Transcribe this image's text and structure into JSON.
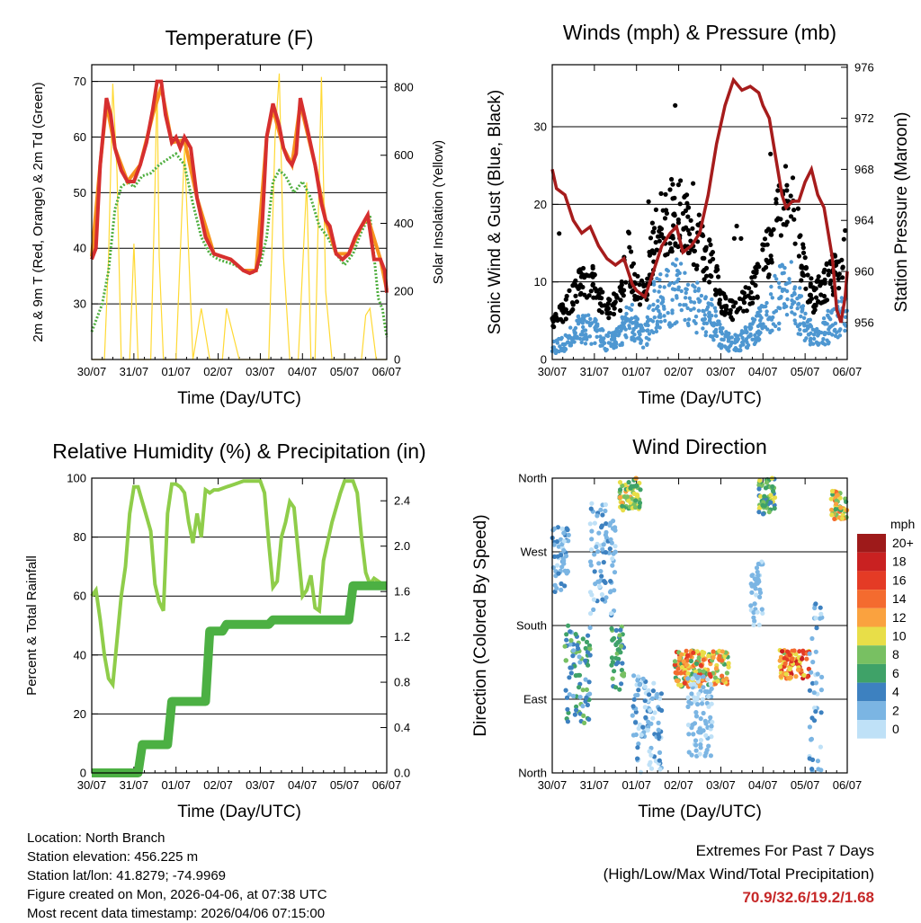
{
  "colors": {
    "temp_red": "#d62f2f",
    "temp_orange": "#f7931e",
    "dewpoint_green": "#4fae3f",
    "solar_yellow": "#ffd934",
    "gust_black": "#000000",
    "wind_blue": "#4e97d1",
    "pressure_maroon": "#a61c1c",
    "rh_lightgreen": "#8fcd4a",
    "precip_green": "#4cb043",
    "extremes_red": "#c62828"
  },
  "chart_data": [
    {
      "id": "temperature",
      "type": "line",
      "title": "Temperature (F)",
      "xlabel": "Time (Day/UTC)",
      "ylabel": "2m & 9m T (Red, Orange) & 2m Td (Green)",
      "ylabel_right": "Solar Insolation (Yellow)",
      "x_ticks": [
        "30/07",
        "31/07",
        "01/07",
        "02/07",
        "03/07",
        "04/07",
        "05/07",
        "06/07"
      ],
      "xlim": [
        0,
        7
      ],
      "ylim": [
        20,
        73
      ],
      "y_ticks": [
        30,
        40,
        50,
        60,
        70
      ],
      "ylim_right": [
        0,
        866
      ],
      "y_ticks_right": [
        0,
        200,
        400,
        600,
        800
      ],
      "series": [
        {
          "name": "2m T",
          "color": "#d62f2f",
          "axis": "left",
          "x": [
            0,
            0.1,
            0.2,
            0.35,
            0.45,
            0.55,
            0.7,
            0.85,
            1.0,
            1.15,
            1.3,
            1.45,
            1.55,
            1.65,
            1.75,
            1.9,
            2.0,
            2.1,
            2.2,
            2.35,
            2.5,
            2.7,
            2.9,
            3.1,
            3.3,
            3.45,
            3.6,
            3.75,
            3.9,
            4.0,
            4.05,
            4.15,
            4.3,
            4.45,
            4.55,
            4.65,
            4.75,
            4.85,
            4.95,
            5.1,
            5.3,
            5.45,
            5.55,
            5.65,
            5.8,
            5.95,
            6.1,
            6.25,
            6.4,
            6.55,
            6.7,
            6.85,
            6.95,
            7.0
          ],
          "y": [
            38,
            40,
            55,
            67,
            64,
            58,
            54,
            52,
            52,
            55,
            59,
            65,
            70,
            70,
            64,
            59,
            60,
            58,
            60,
            58,
            49,
            42,
            39,
            38.5,
            38,
            37,
            36,
            35.5,
            36,
            39,
            45,
            60,
            66,
            62,
            58,
            56,
            55,
            57,
            67,
            62,
            55,
            48,
            45,
            44,
            39,
            38,
            39,
            42,
            44,
            46,
            38,
            38,
            36,
            32
          ]
        },
        {
          "name": "9m T",
          "color": "#f7931e",
          "axis": "left",
          "x": [
            0,
            0.2,
            0.35,
            0.55,
            0.85,
            1.15,
            1.45,
            1.65,
            1.9,
            2.2,
            2.5,
            2.9,
            3.3,
            3.6,
            3.9,
            4.15,
            4.3,
            4.55,
            4.75,
            4.95,
            5.3,
            5.55,
            5.8,
            6.1,
            6.4,
            6.55,
            6.85,
            7.0
          ],
          "y": [
            38.5,
            55,
            66,
            58,
            52,
            55,
            64,
            69,
            59,
            59.5,
            49,
            39,
            38,
            36,
            36,
            60,
            65,
            58,
            55,
            66,
            55,
            45,
            39,
            39,
            44,
            45.5,
            38,
            32.5
          ]
        },
        {
          "name": "2m Td",
          "color": "#4fae3f",
          "axis": "left",
          "x": [
            0,
            0.1,
            0.25,
            0.4,
            0.55,
            0.7,
            0.85,
            1.0,
            1.2,
            1.4,
            1.6,
            1.8,
            2.0,
            2.2,
            2.4,
            2.6,
            2.8,
            3.0,
            3.2,
            3.4,
            3.6,
            3.8,
            4.0,
            4.15,
            4.3,
            4.45,
            4.6,
            4.8,
            5.0,
            5.2,
            5.4,
            5.6,
            5.8,
            6.0,
            6.2,
            6.4,
            6.6,
            6.8,
            6.9,
            7.0
          ],
          "y": [
            25,
            27,
            30,
            36,
            47,
            51,
            52,
            51,
            53,
            53.5,
            55,
            56,
            57,
            55,
            48,
            42,
            39,
            38,
            37.5,
            37,
            36,
            35.5,
            37,
            42,
            52,
            54,
            53,
            50,
            52,
            49,
            44,
            42,
            39,
            37,
            39,
            43,
            46,
            31,
            29,
            24
          ]
        },
        {
          "name": "Solar",
          "color": "#ffd934",
          "axis": "right",
          "x": [
            0,
            0.3,
            0.4,
            0.5,
            0.6,
            0.7,
            0.9,
            1.0,
            1.1,
            1.4,
            1.5,
            1.55,
            1.6,
            1.7,
            2.0,
            2.2,
            2.4,
            2.6,
            2.8,
            3.0,
            3.1,
            3.2,
            3.5,
            3.7,
            3.9,
            4.2,
            4.35,
            4.45,
            4.55,
            4.7,
            4.9,
            5.1,
            5.2,
            5.3,
            5.45,
            5.55,
            5.7,
            6.0,
            6.2,
            6.4,
            6.5,
            6.6,
            6.75,
            7.0
          ],
          "y": [
            0,
            0,
            300,
            810,
            550,
            0,
            0,
            340,
            0,
            0,
            500,
            820,
            300,
            0,
            0,
            620,
            0,
            150,
            0,
            0,
            0,
            150,
            0,
            0,
            0,
            0,
            650,
            840,
            300,
            0,
            0,
            520,
            0,
            0,
            830,
            200,
            0,
            0,
            0,
            0,
            130,
            150,
            0,
            0
          ]
        }
      ]
    },
    {
      "id": "winds",
      "type": "scatter",
      "title": "Winds (mph) & Pressure (mb)",
      "xlabel": "Time (Day/UTC)",
      "ylabel": "Sonic Wind & Gust (Blue, Black)",
      "ylabel_right": "Station Pressure (Maroon)",
      "x_ticks": [
        "30/07",
        "31/07",
        "01/07",
        "02/07",
        "03/07",
        "04/07",
        "05/07",
        "06/07"
      ],
      "xlim": [
        0,
        7
      ],
      "ylim": [
        0,
        38
      ],
      "y_ticks": [
        0,
        10,
        20,
        30
      ],
      "ylim_right": [
        953.1,
        976.2
      ],
      "y_ticks_right": [
        956,
        960,
        964,
        968,
        972,
        976
      ],
      "wind_profile": {
        "x": [
          0,
          0.3,
          0.6,
          0.9,
          1.1,
          1.3,
          1.6,
          1.8,
          2.0,
          2.2,
          2.4,
          2.6,
          2.9,
          3.2,
          3.5,
          3.8,
          4.0,
          4.2,
          4.4,
          4.6,
          4.8,
          5.0,
          5.2,
          5.4,
          5.6,
          5.8,
          6.0,
          6.2,
          6.4,
          6.6,
          6.8,
          7.0
        ],
        "y": [
          2,
          3,
          5,
          6,
          4,
          3,
          4,
          8,
          5,
          4,
          9,
          11,
          12,
          11,
          9,
          7,
          4,
          3,
          3,
          4,
          5,
          7,
          9,
          11,
          13,
          10,
          6,
          4,
          5,
          6,
          7,
          8
        ]
      },
      "pressure": {
        "x": [
          0,
          0.1,
          0.3,
          0.5,
          0.7,
          0.9,
          1.1,
          1.3,
          1.5,
          1.7,
          1.9,
          2.0,
          2.2,
          2.4,
          2.6,
          2.8,
          2.95,
          3.1,
          3.3,
          3.5,
          3.7,
          3.9,
          4.1,
          4.3,
          4.5,
          4.7,
          4.9,
          5.0,
          5.15,
          5.3,
          5.45,
          5.55,
          5.7,
          5.85,
          6.0,
          6.15,
          6.3,
          6.45,
          6.55,
          6.65,
          6.75,
          6.85,
          6.95,
          7.0
        ],
        "y": [
          968,
          966.5,
          966,
          964,
          963,
          963.5,
          962,
          961,
          960.5,
          961,
          959,
          958.5,
          958,
          960,
          962,
          963,
          963.5,
          961.5,
          962,
          963,
          966,
          970,
          973,
          975,
          974.2,
          974.5,
          974,
          973,
          972,
          969,
          966,
          965,
          965.5,
          965.5,
          967,
          968,
          966,
          965,
          963,
          961,
          957,
          956,
          958,
          960
        ]
      }
    },
    {
      "id": "humidity",
      "type": "line",
      "title": "Relative Humidity (%) & Precipitation (in)",
      "xlabel": "Time (Day/UTC)",
      "ylabel": "Percent & Total Rainfall",
      "x_ticks": [
        "30/07",
        "31/07",
        "01/07",
        "02/07",
        "03/07",
        "04/07",
        "05/07",
        "06/07"
      ],
      "xlim": [
        0,
        7
      ],
      "ylim": [
        0,
        100
      ],
      "y_ticks": [
        0,
        20,
        40,
        60,
        80,
        100
      ],
      "ylim_right": [
        0,
        2.6
      ],
      "y_ticks_right": [
        "0.0",
        "0.4",
        "0.8",
        "1.2",
        "1.6",
        "2.0",
        "2.4"
      ],
      "series": [
        {
          "name": "Relative Humidity",
          "color": "#8fcd4a",
          "axis": "left",
          "x": [
            0,
            0.1,
            0.2,
            0.3,
            0.4,
            0.5,
            0.6,
            0.7,
            0.8,
            0.9,
            1.0,
            1.1,
            1.2,
            1.4,
            1.5,
            1.6,
            1.7,
            1.8,
            1.9,
            2.0,
            2.1,
            2.2,
            2.3,
            2.4,
            2.5,
            2.6,
            2.7,
            2.8,
            2.9,
            3.0,
            3.2,
            3.4,
            3.6,
            3.8,
            4.0,
            4.1,
            4.2,
            4.3,
            4.4,
            4.5,
            4.6,
            4.7,
            4.8,
            4.9,
            5.0,
            5.1,
            5.2,
            5.3,
            5.4,
            5.5,
            5.7,
            5.9,
            6.0,
            6.1,
            6.2,
            6.3,
            6.4,
            6.5,
            6.6,
            6.7,
            6.8,
            6.9,
            7.0
          ],
          "y": [
            60,
            62,
            52,
            40,
            32,
            30,
            45,
            60,
            70,
            88,
            97,
            97,
            92,
            82,
            64,
            58,
            55,
            88,
            98,
            98,
            97,
            95,
            85,
            78,
            88,
            80,
            96,
            95,
            96,
            96,
            97,
            98,
            99,
            99,
            99,
            95,
            78,
            63,
            65,
            80,
            85,
            92,
            90,
            75,
            60,
            62,
            67,
            56,
            55,
            72,
            85,
            95,
            99,
            99,
            99,
            95,
            80,
            68,
            64,
            66,
            65,
            64,
            64
          ]
        },
        {
          "name": "Total Precipitation",
          "color": "#4cb043",
          "axis": "right",
          "x": [
            0,
            1.1,
            1.2,
            1.8,
            1.9,
            2.7,
            2.8,
            3.1,
            3.2,
            4.2,
            4.3,
            6.1,
            6.2,
            7.0
          ],
          "y": [
            0,
            0,
            0.25,
            0.25,
            0.63,
            0.63,
            1.25,
            1.25,
            1.31,
            1.31,
            1.35,
            1.35,
            1.65,
            1.65
          ]
        }
      ]
    },
    {
      "id": "direction",
      "type": "scatter",
      "title": "Wind Direction",
      "xlabel": "Time (Day/UTC)",
      "ylabel": "Direction (Colored By Speed)",
      "x_ticks": [
        "30/07",
        "31/07",
        "01/07",
        "02/07",
        "03/07",
        "04/07",
        "05/07",
        "06/07"
      ],
      "xlim": [
        0,
        7
      ],
      "ylim": [
        0,
        360
      ],
      "y_ticks": [
        "North",
        "East",
        "South",
        "West",
        "North"
      ],
      "legend": {
        "title": "mph",
        "labels": [
          "20+",
          "18",
          "16",
          "14",
          "12",
          "10",
          "8",
          "6",
          "4",
          "2",
          "0"
        ],
        "colors": [
          "#9e1a1a",
          "#c92121",
          "#e43b25",
          "#f46b2f",
          "#faa23f",
          "#e8de48",
          "#78c062",
          "#3fa268",
          "#3d81c0",
          "#7bb5e3",
          "#bfe1f7"
        ]
      },
      "clusters": [
        {
          "x": [
            0,
            0.4
          ],
          "dir": [
            220,
            300
          ],
          "speed": [
            0,
            4
          ]
        },
        {
          "x": [
            0.3,
            0.9
          ],
          "dir": [
            60,
            180
          ],
          "speed": [
            2,
            8
          ]
        },
        {
          "x": [
            0.9,
            1.5
          ],
          "dir": [
            190,
            330
          ],
          "speed": [
            0,
            4
          ]
        },
        {
          "x": [
            1.4,
            1.7
          ],
          "dir": [
            100,
            180
          ],
          "speed": [
            3,
            8
          ]
        },
        {
          "x": [
            1.6,
            2.1
          ],
          "dir": [
            320,
            360
          ],
          "speed": [
            6,
            12
          ]
        },
        {
          "x": [
            1.9,
            2.6
          ],
          "dir": [
            0,
            120
          ],
          "speed": [
            0,
            4
          ]
        },
        {
          "x": [
            2.9,
            4.2
          ],
          "dir": [
            105,
            150
          ],
          "speed": [
            6,
            16
          ]
        },
        {
          "x": [
            3.2,
            3.8
          ],
          "dir": [
            20,
            120
          ],
          "speed": [
            0,
            3
          ]
        },
        {
          "x": [
            4.9,
            5.3
          ],
          "dir": [
            315,
            360
          ],
          "speed": [
            4,
            10
          ]
        },
        {
          "x": [
            4.7,
            5.0
          ],
          "dir": [
            180,
            260
          ],
          "speed": [
            0,
            3
          ]
        },
        {
          "x": [
            5.4,
            6.1
          ],
          "dir": [
            115,
            150
          ],
          "speed": [
            8,
            18
          ]
        },
        {
          "x": [
            6.1,
            6.4
          ],
          "dir": [
            0,
            220
          ],
          "speed": [
            0,
            4
          ]
        },
        {
          "x": [
            6.6,
            7.0
          ],
          "dir": [
            310,
            345
          ],
          "speed": [
            6,
            14
          ]
        }
      ]
    }
  ],
  "info": {
    "location": "Location: North Branch",
    "elevation": "Station elevation: 456.225 m",
    "latlon": "Station lat/lon: 41.8279; -74.9969",
    "created": "Figure created on Mon, 2026-04-06, at 07:38 UTC",
    "timestamp": "Most recent data timestamp: 2026/04/06 07:15:00"
  },
  "extremes": {
    "title": "Extremes For Past 7 Days",
    "subtitle": "(High/Low/Max Wind/Total Precipitation)",
    "values": "70.9/32.6/19.2/1.68"
  }
}
